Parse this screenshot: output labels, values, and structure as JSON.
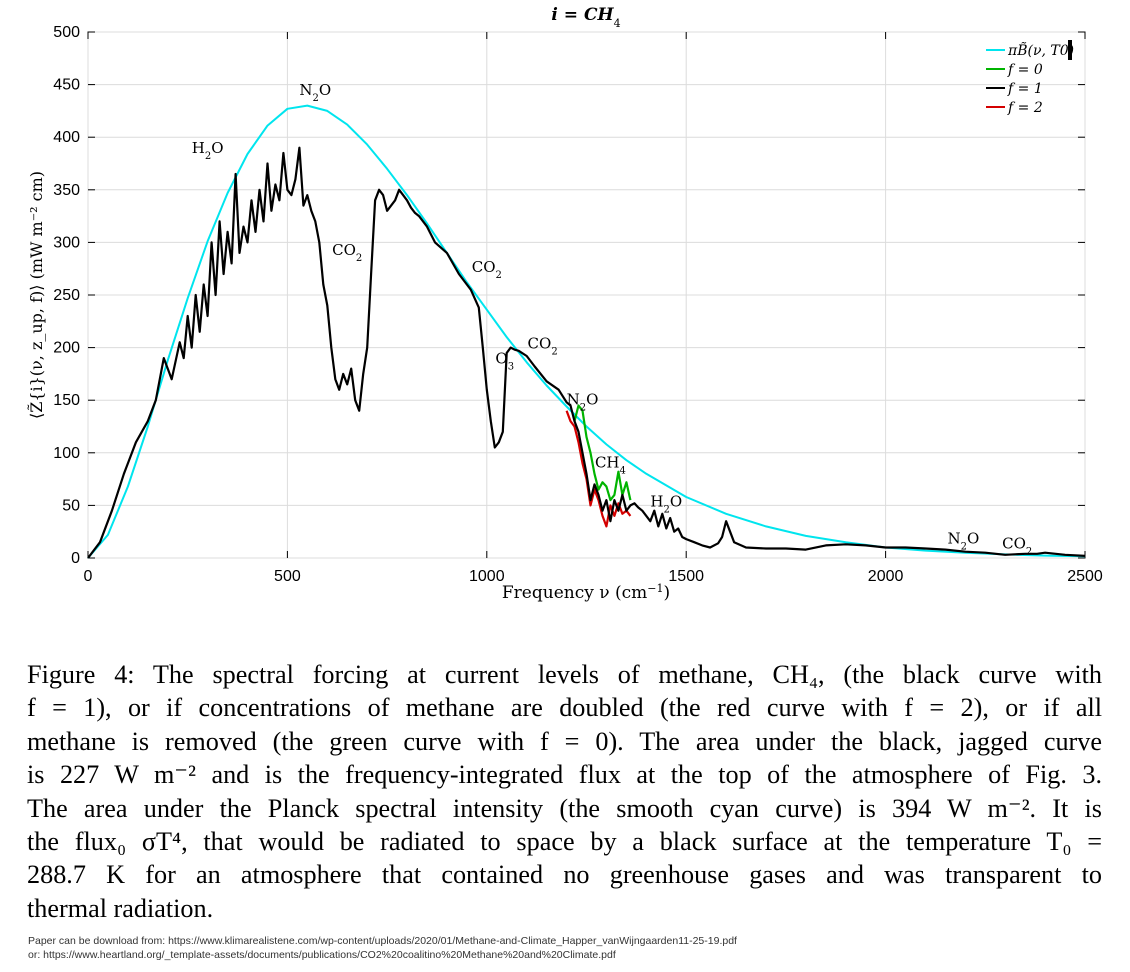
{
  "chart_data": {
    "type": "line",
    "title_text": "i = CH",
    "title_sub": "4",
    "xlabel": "Frequency ν (cm",
    "xlabel_sup": "−1",
    "xlabel_end": ")",
    "ylabel": "⟨Z̃{i}(ν, z_up, f)⟩ (mW m⁻² cm)",
    "xlim": [
      0,
      2500
    ],
    "ylim": [
      0,
      500
    ],
    "xticks": [
      0,
      500,
      1000,
      1500,
      2000,
      2500
    ],
    "yticks": [
      0,
      50,
      100,
      150,
      200,
      250,
      300,
      350,
      400,
      450,
      500
    ],
    "grid": true,
    "legend_position": "top-right",
    "colors": {
      "planck": "#00e5ee",
      "f0": "#00b400",
      "f1": "#000000",
      "f2": "#d40000"
    },
    "series": [
      {
        "name": "πB̃(ν, T0)",
        "key": "planck",
        "x": [
          0,
          50,
          100,
          150,
          200,
          250,
          300,
          350,
          400,
          450,
          500,
          550,
          600,
          650,
          700,
          750,
          800,
          850,
          900,
          950,
          1000,
          1050,
          1100,
          1150,
          1200,
          1250,
          1300,
          1350,
          1400,
          1500,
          1600,
          1700,
          1800,
          1900,
          2000,
          2100,
          2200,
          2300,
          2400,
          2500
        ],
        "values": [
          0,
          22,
          68,
          125,
          188,
          247,
          301,
          347,
          384,
          411,
          427,
          430,
          425,
          412,
          393,
          370,
          345,
          318,
          290,
          262,
          236,
          210,
          186,
          164,
          144,
          125,
          108,
          93,
          80,
          58,
          42,
          30,
          21,
          15,
          10,
          7,
          5,
          3.4,
          2.3,
          1.6
        ]
      },
      {
        "name": "f = 1",
        "key": "f1",
        "x": [
          0,
          30,
          60,
          90,
          120,
          150,
          170,
          190,
          210,
          230,
          240,
          250,
          260,
          270,
          280,
          290,
          300,
          310,
          320,
          330,
          340,
          350,
          360,
          370,
          380,
          390,
          400,
          410,
          420,
          430,
          440,
          450,
          460,
          470,
          480,
          490,
          500,
          510,
          520,
          530,
          540,
          550,
          560,
          570,
          580,
          590,
          600,
          610,
          620,
          630,
          640,
          650,
          660,
          670,
          680,
          690,
          700,
          710,
          720,
          730,
          740,
          750,
          760,
          770,
          780,
          790,
          800,
          810,
          820,
          830,
          850,
          870,
          900,
          930,
          960,
          980,
          990,
          1000,
          1010,
          1020,
          1030,
          1040,
          1050,
          1060,
          1070,
          1080,
          1100,
          1120,
          1150,
          1180,
          1200,
          1210,
          1220,
          1230,
          1240,
          1250,
          1260,
          1270,
          1280,
          1290,
          1300,
          1310,
          1320,
          1330,
          1340,
          1350,
          1360,
          1370,
          1380,
          1390,
          1400,
          1410,
          1420,
          1430,
          1440,
          1450,
          1460,
          1470,
          1480,
          1490,
          1500,
          1520,
          1540,
          1560,
          1580,
          1590,
          1600,
          1620,
          1650,
          1700,
          1750,
          1800,
          1850,
          1900,
          1950,
          2000,
          2050,
          2100,
          2150,
          2200,
          2250,
          2300,
          2350,
          2380,
          2400,
          2450,
          2500
        ],
        "values": [
          0,
          15,
          45,
          80,
          110,
          130,
          150,
          190,
          170,
          205,
          190,
          230,
          200,
          250,
          215,
          260,
          230,
          300,
          250,
          320,
          270,
          310,
          280,
          365,
          290,
          315,
          300,
          340,
          310,
          350,
          320,
          375,
          330,
          355,
          340,
          385,
          350,
          345,
          360,
          390,
          335,
          345,
          330,
          320,
          300,
          260,
          240,
          200,
          170,
          160,
          175,
          165,
          180,
          150,
          140,
          175,
          200,
          270,
          340,
          350,
          345,
          330,
          335,
          340,
          350,
          345,
          340,
          333,
          328,
          325,
          315,
          300,
          290,
          270,
          255,
          238,
          200,
          160,
          130,
          105,
          110,
          120,
          195,
          200,
          198,
          197,
          192,
          182,
          168,
          160,
          148,
          145,
          130,
          120,
          100,
          80,
          55,
          70,
          60,
          45,
          55,
          35,
          55,
          45,
          60,
          45,
          50,
          52,
          48,
          45,
          40,
          35,
          45,
          30,
          42,
          28,
          38,
          25,
          28,
          20,
          18,
          15,
          12,
          10,
          14,
          20,
          35,
          15,
          10,
          9,
          9,
          8,
          12,
          13,
          12,
          10,
          10,
          9,
          8,
          6,
          5,
          3,
          4,
          4,
          5,
          3,
          2
        ]
      },
      {
        "name": "f = 0",
        "key": "f0",
        "x": [
          1220,
          1230,
          1240,
          1250,
          1260,
          1270,
          1280,
          1290,
          1300,
          1310,
          1320,
          1330,
          1340,
          1350,
          1360
        ],
        "values": [
          130,
          145,
          140,
          115,
          100,
          80,
          65,
          72,
          68,
          55,
          60,
          82,
          60,
          72,
          55
        ]
      },
      {
        "name": "f = 2",
        "key": "f2",
        "x": [
          1200,
          1210,
          1220,
          1230,
          1240,
          1250,
          1260,
          1270,
          1280,
          1290,
          1300,
          1310,
          1320,
          1330,
          1340,
          1350,
          1360
        ],
        "values": [
          140,
          130,
          125,
          110,
          90,
          75,
          50,
          65,
          55,
          40,
          30,
          50,
          40,
          52,
          42,
          45,
          40
        ]
      }
    ],
    "annotations": [
      {
        "text": "H",
        "sub": "2",
        "end": "O",
        "x": 300,
        "y": 385
      },
      {
        "text": "N",
        "sub": "2",
        "end": "O",
        "x": 570,
        "y": 440
      },
      {
        "text": "CO",
        "sub": "2",
        "end": "",
        "x": 650,
        "y": 288
      },
      {
        "text": "CO",
        "sub": "2",
        "end": "",
        "x": 1000,
        "y": 272
      },
      {
        "text": "O",
        "sub": "3",
        "end": "",
        "x": 1045,
        "y": 185
      },
      {
        "text": "CO",
        "sub": "2",
        "end": "",
        "x": 1140,
        "y": 199
      },
      {
        "text": "N",
        "sub": "2",
        "end": "O",
        "x": 1240,
        "y": 146
      },
      {
        "text": "CH",
        "sub": "4",
        "end": "",
        "x": 1310,
        "y": 86
      },
      {
        "text": "H",
        "sub": "2",
        "end": "O",
        "x": 1450,
        "y": 49
      },
      {
        "text": "N",
        "sub": "2",
        "end": "O",
        "x": 2195,
        "y": 14
      },
      {
        "text": "CO",
        "sub": "2",
        "end": "",
        "x": 2330,
        "y": 9
      }
    ]
  },
  "caption": {
    "lines": [
      "Figure 4:  The spectral forcing at current levels of methane, CH₄, (the black curve with",
      "f = 1), or if concentrations of methane are doubled (the red curve with f = 2), or if all",
      "methane is removed (the green curve with f = 0).  The area under the black, jagged curve",
      "is 227 W m⁻² and is the frequency-integrated flux at the top of the atmosphere of Fig. 3.",
      "The area under the Planck spectral intensity (the smooth cyan curve) is 394 W m⁻². It is",
      "the flux₀ σT⁴, that would be radiated to space by a black surface at the temperature T₀ =",
      "288.7 K for an atmosphere that contained no greenhouse gases and was transparent to",
      "thermal radiation."
    ]
  },
  "footnote": {
    "line1": "Paper can be download from:   https://www.klimarealistene.com/wp-content/uploads/2020/01/Methane-and-Climate_Happer_vanWijngaarden11-25-19.pdf",
    "line2": "or:   https://www.heartland.org/_template-assets/documents/publications/CO2%20coalitino%20Methane%20and%20Climate.pdf"
  }
}
